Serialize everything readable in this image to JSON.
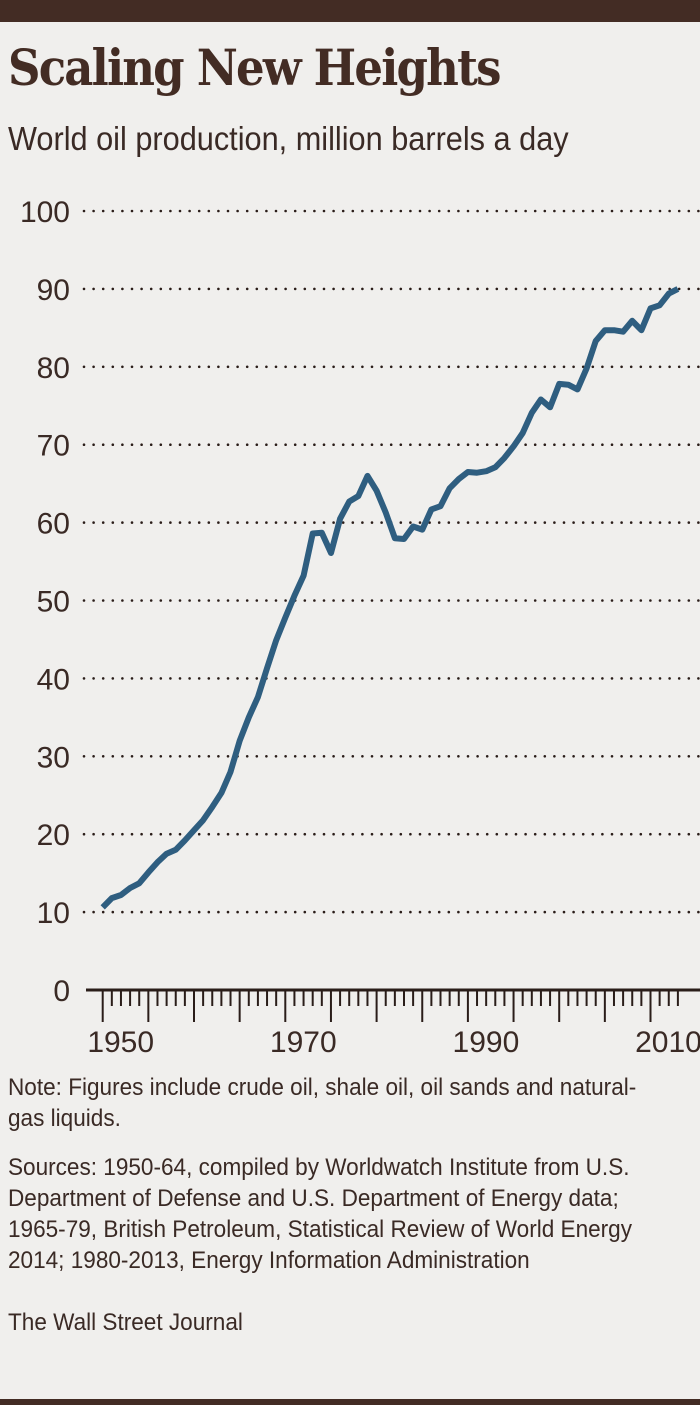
{
  "title": "Scaling New Heights",
  "subtitle": "World oil production, million barrels a day",
  "note": "Note: Figures include crude oil, shale oil, oil sands and natural-gas liquids.",
  "sources": "Sources: 1950-64, compiled by Worldwatch Institute from U.S. Department of Defense and U.S. Department of Energy data; 1965-79, British Petroleum, Statistical Review of World Energy 2014; 1980-2013, Energy Information Administration",
  "credit": "The Wall Street Journal",
  "colors": {
    "line": "#2f5e80",
    "frame": "#432c24",
    "background": "#f0efed"
  },
  "chart_data": {
    "type": "line",
    "title": "Scaling New Heights",
    "subtitle": "World oil production, million barrels a day",
    "xlabel": "",
    "ylabel": "",
    "xlim": [
      1950,
      2013
    ],
    "ylim": [
      0,
      100
    ],
    "grid": "horizontal dotted",
    "x_ticks": [
      "1950",
      "1970",
      "1990",
      "2010"
    ],
    "y_ticks": [
      "0",
      "10",
      "20",
      "30",
      "40",
      "50",
      "60",
      "70",
      "80",
      "90",
      "100"
    ],
    "x": [
      1950,
      1951,
      1952,
      1953,
      1954,
      1955,
      1956,
      1957,
      1958,
      1959,
      1960,
      1961,
      1962,
      1963,
      1964,
      1965,
      1966,
      1967,
      1968,
      1969,
      1970,
      1971,
      1972,
      1973,
      1974,
      1975,
      1976,
      1977,
      1978,
      1979,
      1980,
      1981,
      1982,
      1983,
      1984,
      1985,
      1986,
      1987,
      1988,
      1989,
      1990,
      1991,
      1992,
      1993,
      1994,
      1995,
      1996,
      1997,
      1998,
      1999,
      2000,
      2001,
      2002,
      2003,
      2004,
      2005,
      2006,
      2007,
      2008,
      2009,
      2010,
      2011,
      2012,
      2013
    ],
    "series": [
      {
        "values": [
          10.6,
          11.8,
          12.2,
          13.1,
          13.7,
          15.1,
          16.4,
          17.5,
          18.0,
          19.2,
          20.5,
          21.8,
          23.5,
          25.3,
          28.0,
          32.0,
          35.0,
          37.6,
          41.3,
          44.9,
          47.8,
          50.6,
          53.2,
          58.6,
          58.7,
          56.1,
          60.5,
          62.7,
          63.4,
          66.0,
          64.1,
          61.3,
          58.0,
          57.9,
          59.5,
          59.1,
          61.7,
          62.1,
          64.4,
          65.6,
          66.5,
          66.4,
          66.6,
          67.1,
          68.3,
          69.8,
          71.5,
          74.1,
          75.8,
          74.8,
          77.8,
          77.7,
          77.1,
          79.8,
          83.3,
          84.7,
          84.7,
          84.5,
          85.9,
          84.7,
          87.5,
          87.9,
          89.4,
          90.0
        ]
      }
    ]
  }
}
